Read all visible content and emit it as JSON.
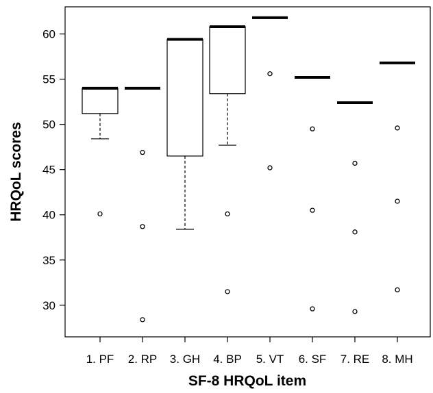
{
  "chart_data": {
    "type": "box",
    "title": "",
    "xlabel": "SF-8 HRQoL item",
    "ylabel": "HRQoL scores",
    "ylim": [
      26.5,
      63
    ],
    "yticks": [
      30,
      35,
      40,
      45,
      50,
      55,
      60
    ],
    "grid": false,
    "legend": "none",
    "categories": [
      "1. PF",
      "2. RP",
      "3. GH",
      "4. BP",
      "5. VT",
      "6. SF",
      "7. RE",
      "8. MH"
    ],
    "boxes": [
      {
        "category": "1. PF",
        "whisker_low": 48.4,
        "q1": 51.2,
        "median": 54.0,
        "q3": 54.0,
        "whisker_high": 54.0,
        "outliers": [
          40.1
        ]
      },
      {
        "category": "2. RP",
        "whisker_low": 54.0,
        "q1": 54.0,
        "median": 54.0,
        "q3": 54.0,
        "whisker_high": 54.0,
        "outliers": [
          46.9,
          38.7,
          28.4
        ]
      },
      {
        "category": "3. GH",
        "whisker_low": 38.4,
        "q1": 46.5,
        "median": 59.4,
        "q3": 59.4,
        "whisker_high": 59.4,
        "outliers": []
      },
      {
        "category": "4. BP",
        "whisker_low": 47.7,
        "q1": 53.4,
        "median": 60.8,
        "q3": 60.8,
        "whisker_high": 60.8,
        "outliers": [
          40.1,
          31.5
        ]
      },
      {
        "category": "5. VT",
        "whisker_low": 61.8,
        "q1": 61.8,
        "median": 61.8,
        "q3": 61.8,
        "whisker_high": 61.8,
        "outliers": [
          55.6,
          45.2
        ]
      },
      {
        "category": "6. SF",
        "whisker_low": 55.2,
        "q1": 55.2,
        "median": 55.2,
        "q3": 55.2,
        "whisker_high": 55.2,
        "outliers": [
          49.5,
          40.5,
          29.6
        ]
      },
      {
        "category": "7. RE",
        "whisker_low": 52.4,
        "q1": 52.4,
        "median": 52.4,
        "q3": 52.4,
        "whisker_high": 52.4,
        "outliers": [
          45.7,
          38.1,
          29.3
        ]
      },
      {
        "category": "8. MH",
        "whisker_low": 56.8,
        "q1": 56.8,
        "median": 56.8,
        "q3": 56.8,
        "whisker_high": 56.8,
        "outliers": [
          49.6,
          41.5,
          31.7
        ]
      }
    ],
    "colors": {
      "box_fill": "#ffffff",
      "stroke": "#000000"
    }
  }
}
